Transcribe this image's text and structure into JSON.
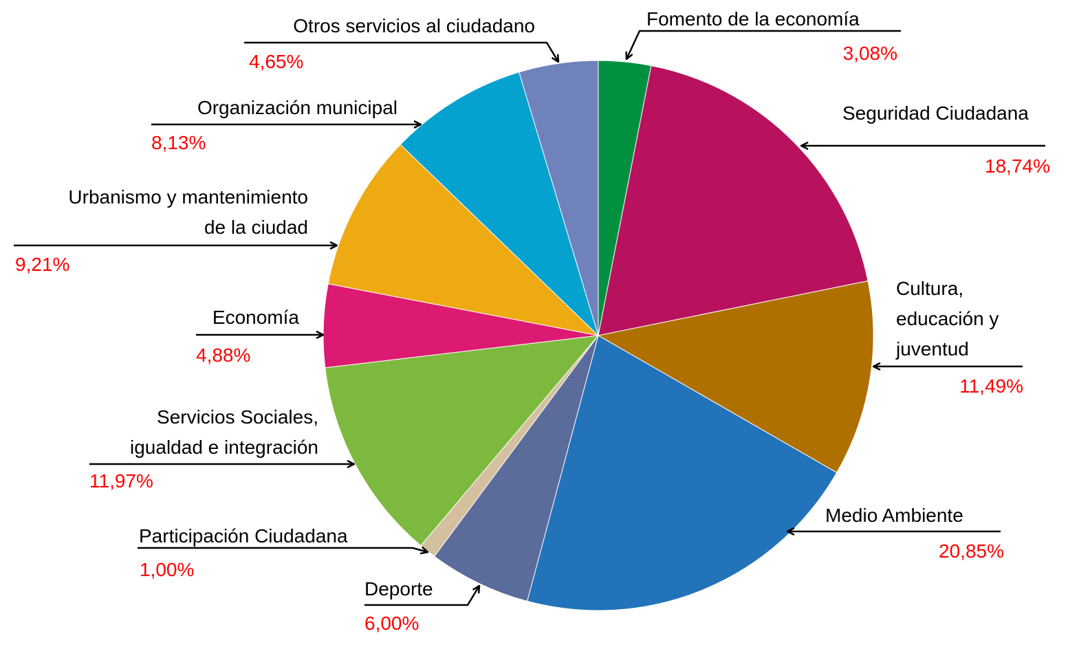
{
  "chart_data": {
    "type": "pie",
    "categories": [
      "Fomento de la economía",
      "Seguridad Ciudadana",
      "Cultura,\neducación y\njuventud",
      "Medio Ambiente",
      "Deporte",
      "Participación Ciudadana",
      "Servicios Sociales,\nigualdad e integración",
      "Economía",
      "Urbanismo y mantenimiento\nde la ciudad",
      "Organización municipal",
      "Otros servicios al ciudadano"
    ],
    "values": [
      3.08,
      18.74,
      11.49,
      20.85,
      6.0,
      1.0,
      11.97,
      4.88,
      9.21,
      8.13,
      4.65
    ],
    "value_labels": [
      "3,08%",
      "18,74%",
      "11,49%",
      "20,85%",
      "6,00%",
      "1,00%",
      "11,97%",
      "4,88%",
      "9,21%",
      "8,13%",
      "4,65%"
    ],
    "colors": [
      "#009040",
      "#b8125e",
      "#b07000",
      "#2273b9",
      "#5b6b9a",
      "#d4c09f",
      "#7db93e",
      "#dd1a72",
      "#eeaa12",
      "#06a2cf",
      "#6f82bb"
    ]
  }
}
